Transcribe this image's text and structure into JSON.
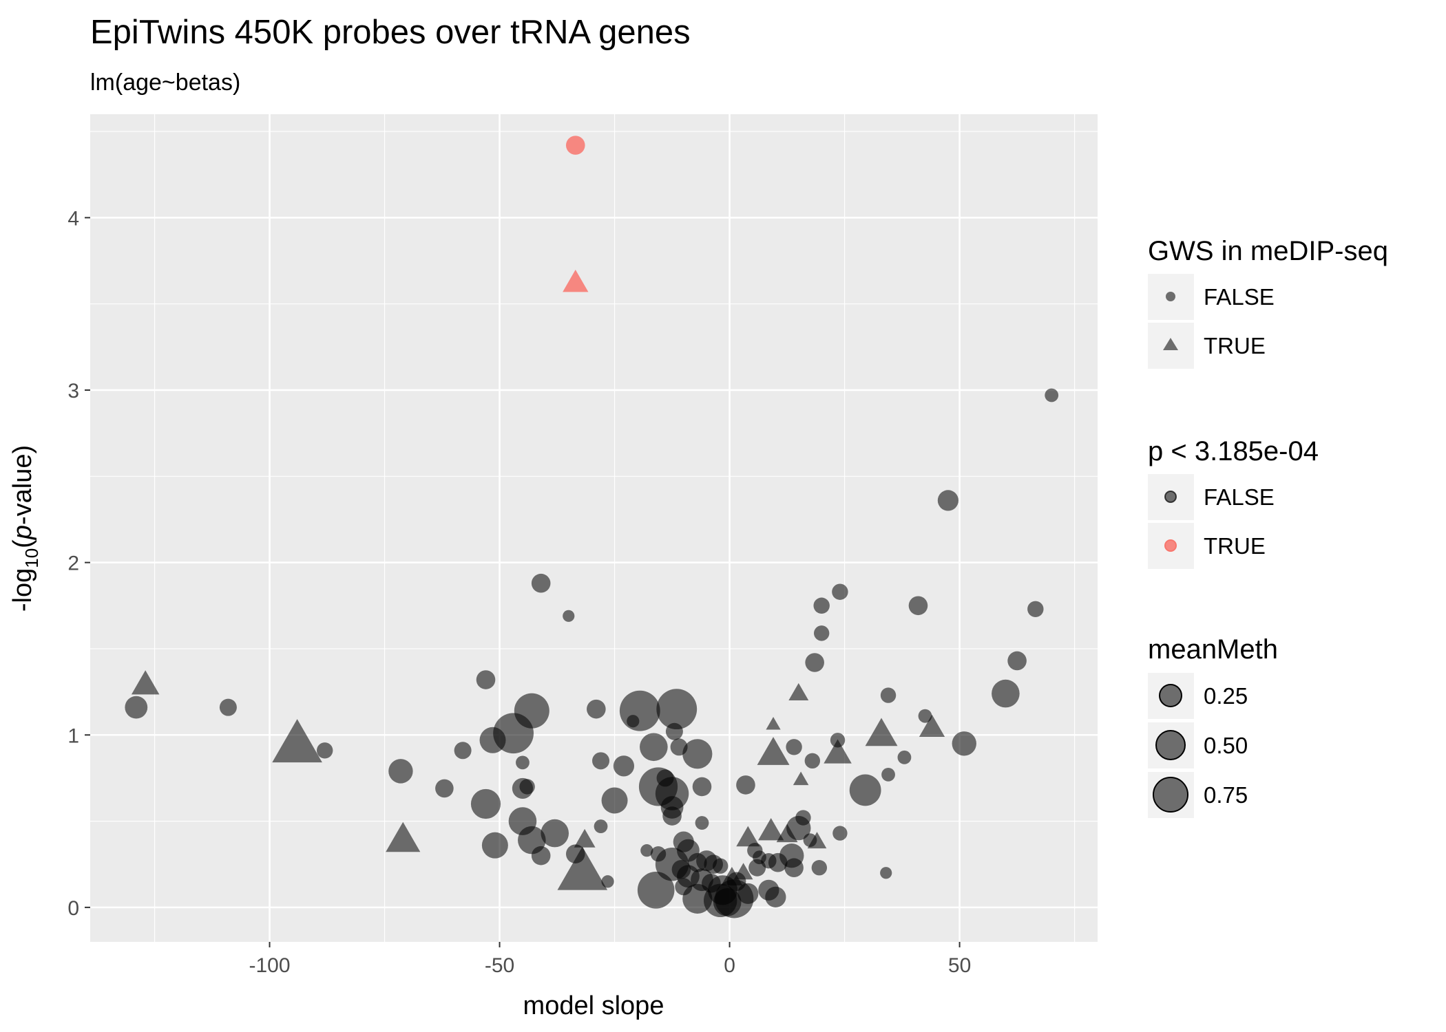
{
  "chart_data": {
    "type": "scatter",
    "title": "EpiTwins 450K probes over tRNA genes",
    "subtitle": "lm(age~betas)",
    "xlabel": "model slope",
    "ylabel": {
      "prefix": "-log",
      "subscript": "10",
      "open": "(",
      "italic": "p",
      "rest": "-value)"
    },
    "xlim": [
      -139,
      80
    ],
    "ylim": [
      -0.2,
      4.6
    ],
    "x_ticks": [
      -100,
      -50,
      0,
      50
    ],
    "x_tick_labels": [
      "-100",
      "-50",
      "0",
      "50"
    ],
    "y_ticks": [
      0,
      1,
      2,
      3,
      4
    ],
    "y_tick_labels": [
      "0",
      "1",
      "2",
      "3",
      "4"
    ],
    "grid": true,
    "legend_position": "right",
    "colors": {
      "sig_false": "#000000",
      "sig_true": "#f8766d",
      "panel": "#ebebeb",
      "grid": "#ffffff",
      "legend_key": "#f2f2f2"
    },
    "legends": {
      "shape": {
        "title": "GWS in meDIP-seq",
        "items": [
          {
            "label": "FALSE",
            "shape": "circle"
          },
          {
            "label": "TRUE",
            "shape": "triangle"
          }
        ]
      },
      "color": {
        "title": "p < 3.185e-04",
        "items": [
          {
            "label": "FALSE",
            "color": "#000000"
          },
          {
            "label": "TRUE",
            "color": "#f8766d"
          }
        ]
      },
      "size": {
        "title": "meanMeth",
        "items": [
          {
            "label": "0.25",
            "value": 0.25
          },
          {
            "label": "0.50",
            "value": 0.5
          },
          {
            "label": "0.75",
            "value": 0.75
          }
        ]
      }
    },
    "points": [
      {
        "x": -33.5,
        "y": 4.42,
        "m": 0.3,
        "gws": false,
        "sig": true
      },
      {
        "x": -33.5,
        "y": 3.62,
        "m": 0.35,
        "gws": true,
        "sig": true
      },
      {
        "x": 70,
        "y": 2.97,
        "m": 0.15,
        "gws": false,
        "sig": false
      },
      {
        "x": 47.5,
        "y": 2.36,
        "m": 0.35,
        "gws": false,
        "sig": false
      },
      {
        "x": -41,
        "y": 1.88,
        "m": 0.3,
        "gws": false,
        "sig": false
      },
      {
        "x": -35,
        "y": 1.69,
        "m": 0.1,
        "gws": false,
        "sig": false
      },
      {
        "x": 24,
        "y": 1.83,
        "m": 0.22,
        "gws": false,
        "sig": false
      },
      {
        "x": 20,
        "y": 1.75,
        "m": 0.22,
        "gws": false,
        "sig": false
      },
      {
        "x": 41,
        "y": 1.75,
        "m": 0.3,
        "gws": false,
        "sig": false
      },
      {
        "x": 66.5,
        "y": 1.73,
        "m": 0.22,
        "gws": false,
        "sig": false
      },
      {
        "x": 20,
        "y": 1.59,
        "m": 0.2,
        "gws": false,
        "sig": false
      },
      {
        "x": 62.5,
        "y": 1.43,
        "m": 0.3,
        "gws": false,
        "sig": false
      },
      {
        "x": 18.5,
        "y": 1.42,
        "m": 0.3,
        "gws": false,
        "sig": false
      },
      {
        "x": 60,
        "y": 1.24,
        "m": 0.55,
        "gws": false,
        "sig": false
      },
      {
        "x": -127,
        "y": 1.29,
        "m": 0.4,
        "gws": true,
        "sig": false
      },
      {
        "x": -129,
        "y": 1.16,
        "m": 0.4,
        "gws": false,
        "sig": false
      },
      {
        "x": -109,
        "y": 1.16,
        "m": 0.25,
        "gws": false,
        "sig": false
      },
      {
        "x": -53,
        "y": 1.32,
        "m": 0.3,
        "gws": false,
        "sig": false
      },
      {
        "x": 15,
        "y": 1.24,
        "m": 0.22,
        "gws": true,
        "sig": false
      },
      {
        "x": 34.5,
        "y": 1.23,
        "m": 0.2,
        "gws": false,
        "sig": false
      },
      {
        "x": -43,
        "y": 1.14,
        "m": 0.75,
        "gws": false,
        "sig": false
      },
      {
        "x": -29,
        "y": 1.15,
        "m": 0.3,
        "gws": false,
        "sig": false
      },
      {
        "x": -21,
        "y": 1.08,
        "m": 0.12,
        "gws": false,
        "sig": false
      },
      {
        "x": -19.5,
        "y": 1.14,
        "m": 0.9,
        "gws": false,
        "sig": false
      },
      {
        "x": -11.5,
        "y": 1.15,
        "m": 0.9,
        "gws": false,
        "sig": false
      },
      {
        "x": 42.5,
        "y": 1.11,
        "m": 0.15,
        "gws": false,
        "sig": false
      },
      {
        "x": 9.5,
        "y": 1.06,
        "m": 0.1,
        "gws": true,
        "sig": false
      },
      {
        "x": -94,
        "y": 0.94,
        "m": 0.9,
        "gws": true,
        "sig": false
      },
      {
        "x": -88,
        "y": 0.91,
        "m": 0.22,
        "gws": false,
        "sig": false
      },
      {
        "x": -58,
        "y": 0.91,
        "m": 0.25,
        "gws": false,
        "sig": false
      },
      {
        "x": -47,
        "y": 1.01,
        "m": 0.9,
        "gws": false,
        "sig": false
      },
      {
        "x": -51.5,
        "y": 0.97,
        "m": 0.5,
        "gws": false,
        "sig": false
      },
      {
        "x": -12,
        "y": 1.02,
        "m": 0.25,
        "gws": false,
        "sig": false
      },
      {
        "x": -16.5,
        "y": 0.93,
        "m": 0.55,
        "gws": false,
        "sig": false
      },
      {
        "x": -11,
        "y": 0.93,
        "m": 0.25,
        "gws": false,
        "sig": false
      },
      {
        "x": -7,
        "y": 0.89,
        "m": 0.6,
        "gws": false,
        "sig": false
      },
      {
        "x": 14,
        "y": 0.93,
        "m": 0.22,
        "gws": false,
        "sig": false
      },
      {
        "x": 23.5,
        "y": 0.97,
        "m": 0.18,
        "gws": false,
        "sig": false
      },
      {
        "x": 33,
        "y": 1.0,
        "m": 0.5,
        "gws": true,
        "sig": false
      },
      {
        "x": 44,
        "y": 1.04,
        "m": 0.35,
        "gws": true,
        "sig": false
      },
      {
        "x": 51,
        "y": 0.95,
        "m": 0.45,
        "gws": false,
        "sig": false
      },
      {
        "x": 9.5,
        "y": 0.89,
        "m": 0.5,
        "gws": true,
        "sig": false
      },
      {
        "x": 23.5,
        "y": 0.89,
        "m": 0.4,
        "gws": true,
        "sig": false
      },
      {
        "x": 18,
        "y": 0.85,
        "m": 0.2,
        "gws": false,
        "sig": false
      },
      {
        "x": 38,
        "y": 0.87,
        "m": 0.15,
        "gws": false,
        "sig": false
      },
      {
        "x": 34.5,
        "y": 0.77,
        "m": 0.15,
        "gws": false,
        "sig": false
      },
      {
        "x": -45,
        "y": 0.84,
        "m": 0.15,
        "gws": false,
        "sig": false
      },
      {
        "x": -28,
        "y": 0.85,
        "m": 0.25,
        "gws": false,
        "sig": false
      },
      {
        "x": -23,
        "y": 0.82,
        "m": 0.35,
        "gws": false,
        "sig": false
      },
      {
        "x": -71.5,
        "y": 0.79,
        "m": 0.45,
        "gws": false,
        "sig": false
      },
      {
        "x": -14,
        "y": 0.75,
        "m": 0.25,
        "gws": false,
        "sig": false
      },
      {
        "x": -15.5,
        "y": 0.7,
        "m": 0.85,
        "gws": false,
        "sig": false
      },
      {
        "x": -12.5,
        "y": 0.66,
        "m": 0.7,
        "gws": false,
        "sig": false
      },
      {
        "x": -6,
        "y": 0.7,
        "m": 0.3,
        "gws": false,
        "sig": false
      },
      {
        "x": 3.5,
        "y": 0.71,
        "m": 0.3,
        "gws": false,
        "sig": false
      },
      {
        "x": 15.5,
        "y": 0.74,
        "m": 0.12,
        "gws": true,
        "sig": false
      },
      {
        "x": 29.5,
        "y": 0.68,
        "m": 0.65,
        "gws": false,
        "sig": false
      },
      {
        "x": -62,
        "y": 0.69,
        "m": 0.28,
        "gws": false,
        "sig": false
      },
      {
        "x": -45,
        "y": 0.69,
        "m": 0.35,
        "gws": false,
        "sig": false
      },
      {
        "x": -44,
        "y": 0.7,
        "m": 0.2,
        "gws": false,
        "sig": false
      },
      {
        "x": -25,
        "y": 0.62,
        "m": 0.5,
        "gws": false,
        "sig": false
      },
      {
        "x": -12.5,
        "y": 0.58,
        "m": 0.4,
        "gws": false,
        "sig": false
      },
      {
        "x": -53,
        "y": 0.6,
        "m": 0.6,
        "gws": false,
        "sig": false
      },
      {
        "x": -12.5,
        "y": 0.53,
        "m": 0.3,
        "gws": false,
        "sig": false
      },
      {
        "x": -45,
        "y": 0.5,
        "m": 0.55,
        "gws": false,
        "sig": false
      },
      {
        "x": -6,
        "y": 0.49,
        "m": 0.15,
        "gws": false,
        "sig": false
      },
      {
        "x": 16,
        "y": 0.52,
        "m": 0.2,
        "gws": false,
        "sig": false
      },
      {
        "x": 15,
        "y": 0.46,
        "m": 0.45,
        "gws": false,
        "sig": false
      },
      {
        "x": -38,
        "y": 0.43,
        "m": 0.55,
        "gws": false,
        "sig": false
      },
      {
        "x": -28,
        "y": 0.47,
        "m": 0.15,
        "gws": false,
        "sig": false
      },
      {
        "x": 9,
        "y": 0.44,
        "m": 0.35,
        "gws": true,
        "sig": false
      },
      {
        "x": 4,
        "y": 0.4,
        "m": 0.3,
        "gws": true,
        "sig": false
      },
      {
        "x": 12.5,
        "y": 0.42,
        "m": 0.25,
        "gws": true,
        "sig": false
      },
      {
        "x": 24,
        "y": 0.43,
        "m": 0.18,
        "gws": false,
        "sig": false
      },
      {
        "x": -71,
        "y": 0.39,
        "m": 0.55,
        "gws": true,
        "sig": false
      },
      {
        "x": -43,
        "y": 0.39,
        "m": 0.55,
        "gws": false,
        "sig": false
      },
      {
        "x": -31.5,
        "y": 0.39,
        "m": 0.25,
        "gws": true,
        "sig": false
      },
      {
        "x": 17.5,
        "y": 0.39,
        "m": 0.15,
        "gws": false,
        "sig": false
      },
      {
        "x": 19,
        "y": 0.38,
        "m": 0.2,
        "gws": true,
        "sig": false
      },
      {
        "x": -51,
        "y": 0.36,
        "m": 0.5,
        "gws": false,
        "sig": false
      },
      {
        "x": -41,
        "y": 0.3,
        "m": 0.3,
        "gws": false,
        "sig": false
      },
      {
        "x": -33.5,
        "y": 0.31,
        "m": 0.3,
        "gws": false,
        "sig": false
      },
      {
        "x": -18,
        "y": 0.33,
        "m": 0.12,
        "gws": false,
        "sig": false
      },
      {
        "x": -15.5,
        "y": 0.31,
        "m": 0.2,
        "gws": false,
        "sig": false
      },
      {
        "x": -10,
        "y": 0.38,
        "m": 0.35,
        "gws": false,
        "sig": false
      },
      {
        "x": -9,
        "y": 0.33,
        "m": 0.4,
        "gws": false,
        "sig": false
      },
      {
        "x": -12.5,
        "y": 0.25,
        "m": 0.7,
        "gws": false,
        "sig": false
      },
      {
        "x": -10.5,
        "y": 0.22,
        "m": 0.3,
        "gws": false,
        "sig": false
      },
      {
        "x": -7,
        "y": 0.26,
        "m": 0.3,
        "gws": false,
        "sig": false
      },
      {
        "x": -5,
        "y": 0.27,
        "m": 0.35,
        "gws": false,
        "sig": false
      },
      {
        "x": -3.5,
        "y": 0.25,
        "m": 0.3,
        "gws": false,
        "sig": false
      },
      {
        "x": -2,
        "y": 0.24,
        "m": 0.2,
        "gws": false,
        "sig": false
      },
      {
        "x": 5.5,
        "y": 0.33,
        "m": 0.2,
        "gws": false,
        "sig": false
      },
      {
        "x": 6.5,
        "y": 0.29,
        "m": 0.15,
        "gws": false,
        "sig": false
      },
      {
        "x": 8.5,
        "y": 0.27,
        "m": 0.2,
        "gws": false,
        "sig": false
      },
      {
        "x": 10.5,
        "y": 0.26,
        "m": 0.3,
        "gws": false,
        "sig": false
      },
      {
        "x": 13.5,
        "y": 0.3,
        "m": 0.45,
        "gws": false,
        "sig": false
      },
      {
        "x": 14,
        "y": 0.23,
        "m": 0.3,
        "gws": false,
        "sig": false
      },
      {
        "x": 19.5,
        "y": 0.23,
        "m": 0.2,
        "gws": false,
        "sig": false
      },
      {
        "x": 6,
        "y": 0.23,
        "m": 0.25,
        "gws": false,
        "sig": false
      },
      {
        "x": 3,
        "y": 0.2,
        "m": 0.2,
        "gws": true,
        "sig": false
      },
      {
        "x": 34,
        "y": 0.2,
        "m": 0.1,
        "gws": false,
        "sig": false
      },
      {
        "x": -32,
        "y": 0.2,
        "m": 0.9,
        "gws": true,
        "sig": false
      },
      {
        "x": -26.5,
        "y": 0.15,
        "m": 0.12,
        "gws": false,
        "sig": false
      },
      {
        "x": -9,
        "y": 0.18,
        "m": 0.4,
        "gws": false,
        "sig": false
      },
      {
        "x": -6,
        "y": 0.16,
        "m": 0.4,
        "gws": false,
        "sig": false
      },
      {
        "x": -4,
        "y": 0.14,
        "m": 0.3,
        "gws": false,
        "sig": false
      },
      {
        "x": 0.5,
        "y": 0.17,
        "m": 0.25,
        "gws": true,
        "sig": false
      },
      {
        "x": 1.5,
        "y": 0.15,
        "m": 0.3,
        "gws": false,
        "sig": false
      },
      {
        "x": -10,
        "y": 0.12,
        "m": 0.25,
        "gws": false,
        "sig": false
      },
      {
        "x": -16,
        "y": 0.1,
        "m": 0.8,
        "gws": false,
        "sig": false
      },
      {
        "x": -1.5,
        "y": 0.1,
        "m": 0.6,
        "gws": false,
        "sig": false
      },
      {
        "x": 4,
        "y": 0.08,
        "m": 0.35,
        "gws": false,
        "sig": false
      },
      {
        "x": 8.5,
        "y": 0.1,
        "m": 0.35,
        "gws": false,
        "sig": false
      },
      {
        "x": 10,
        "y": 0.06,
        "m": 0.35,
        "gws": false,
        "sig": false
      },
      {
        "x": -7,
        "y": 0.05,
        "m": 0.6,
        "gws": false,
        "sig": false
      },
      {
        "x": -2,
        "y": 0.04,
        "m": 0.7,
        "gws": false,
        "sig": false
      },
      {
        "x": 1,
        "y": 0.05,
        "m": 0.85,
        "gws": false,
        "sig": false
      },
      {
        "x": -0.5,
        "y": 0.03,
        "m": 0.55,
        "gws": false,
        "sig": false
      }
    ]
  }
}
